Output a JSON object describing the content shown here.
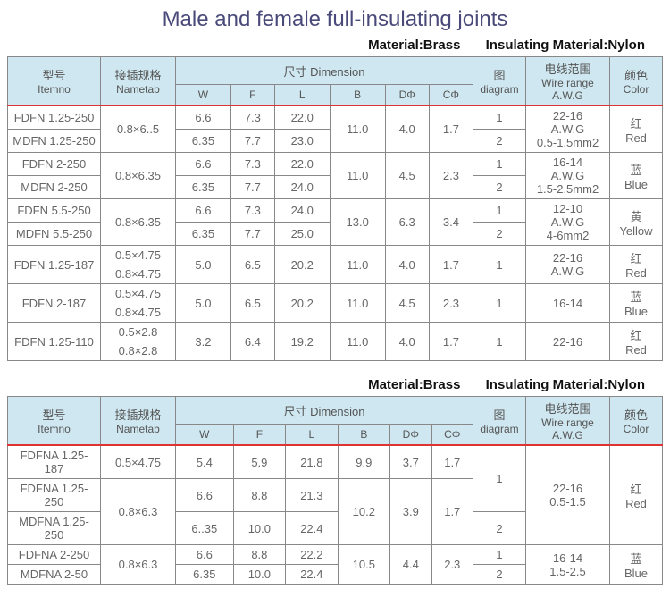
{
  "title": "Male and female full-insulating joints",
  "material_label": "Material:Brass",
  "insulating_label": "Insulating Material:Nylon",
  "headers": {
    "itemno": {
      "cn": "型号",
      "en": "Itemno"
    },
    "nametab": {
      "cn": "接插规格",
      "en": "Nametab"
    },
    "dimension": {
      "cn": "尺寸 Dimension"
    },
    "diagram": {
      "cn": "图",
      "en": "diagram"
    },
    "wirerange": {
      "cn": "电线范围",
      "en": "Wire range A.W.G"
    },
    "color": {
      "cn": "颜色",
      "en": "Color"
    },
    "W": "W",
    "F": "F",
    "L": "L",
    "B": "B",
    "DPhi": "DΦ",
    "CPhi": "CΦ"
  },
  "table1": {
    "groups": [
      {
        "itemnos": [
          "FDFN 1.25-250",
          "MDFN 1.25-250"
        ],
        "nametab": "0.8×6..5",
        "W": [
          "6.6",
          "6.35"
        ],
        "F": [
          "7.3",
          "7.7"
        ],
        "L": [
          "22.0",
          "23.0"
        ],
        "B": "11.0",
        "DPhi": "4.0",
        "CPhi": "1.7",
        "diagram": [
          "1",
          "2"
        ],
        "wirerange_lines": [
          "22-16",
          "A.W.G",
          "0.5-1.5mm2"
        ],
        "color": {
          "cn": "红",
          "en": "Red"
        }
      },
      {
        "itemnos": [
          "FDFN 2-250",
          "MDFN 2-250"
        ],
        "nametab": "0.8×6.35",
        "W": [
          "6.6",
          "6.35"
        ],
        "F": [
          "7.3",
          "7.7"
        ],
        "L": [
          "22.0",
          "24.0"
        ],
        "B": "11.0",
        "DPhi": "4.5",
        "CPhi": "2.3",
        "diagram": [
          "1",
          "2"
        ],
        "wirerange_lines": [
          "16-14",
          "A.W.G",
          "1.5-2.5mm2"
        ],
        "color": {
          "cn": "蓝",
          "en": "Blue"
        }
      },
      {
        "itemnos": [
          "FDFN 5.5-250",
          "MDFN 5.5-250"
        ],
        "nametab": "0.8×6.35",
        "W": [
          "6.6",
          "6.35"
        ],
        "F": [
          "7.3",
          "7.7"
        ],
        "L": [
          "24.0",
          "25.0"
        ],
        "B": "13.0",
        "DPhi": "6.3",
        "CPhi": "3.4",
        "diagram": [
          "1",
          "2"
        ],
        "wirerange_lines": [
          "12-10",
          "A.W.G",
          "4-6mm2"
        ],
        "color": {
          "cn": "黄",
          "en": "Yellow"
        }
      }
    ],
    "singles": [
      {
        "itemno": "FDFN 1.25-187",
        "nametab_lines": [
          "0.5×4.75",
          "0.8×4.75"
        ],
        "W": "5.0",
        "F": "6.5",
        "L": "20.2",
        "B": "11.0",
        "DPhi": "4.0",
        "CPhi": "1.7",
        "diagram": "1",
        "wirerange_lines": [
          "22-16",
          "A.W.G"
        ],
        "color": {
          "cn": "红",
          "en": "Red"
        }
      },
      {
        "itemno": "FDFN 2-187",
        "nametab_lines": [
          "0.5×4.75",
          "0.8×4.75"
        ],
        "W": "5.0",
        "F": "6.5",
        "L": "20.2",
        "B": "11.0",
        "DPhi": "4.5",
        "CPhi": "2.3",
        "diagram": "1",
        "wirerange_lines": [
          "16-14"
        ],
        "color": {
          "cn": "蓝",
          "en": "Blue"
        }
      },
      {
        "itemno": "FDFN 1.25-110",
        "nametab_lines": [
          "0.5×2.8",
          "0.8×2.8"
        ],
        "W": "3.2",
        "F": "6.4",
        "L": "19.2",
        "B": "11.0",
        "DPhi": "4.0",
        "CPhi": "1.7",
        "diagram": "1",
        "wirerange_lines": [
          "22-16"
        ],
        "color": {
          "cn": "红",
          "en": "Red"
        }
      }
    ]
  },
  "table2": {
    "row1": {
      "itemno": "FDFNA 1.25-187",
      "nametab": "0.5×4.75",
      "W": "5.4",
      "F": "5.9",
      "L": "21.8",
      "B": "9.9",
      "DPhi": "3.7",
      "CPhi": "1.7"
    },
    "groups": [
      {
        "itemnos": [
          "FDFNA 1.25-250",
          "MDFNA 1.25-250"
        ],
        "nametab": "0.8×6.3",
        "W": [
          "6.6",
          "6..35"
        ],
        "F": [
          "8.8",
          "10.0"
        ],
        "L": [
          "21.3",
          "22.4"
        ],
        "B": "10.2",
        "DPhi": "3.9",
        "CPhi": "1.7",
        "diagram": [
          "1",
          "2"
        ],
        "diagram_row1": "1",
        "wirerange_lines": [
          "22-16",
          "0.5-1.5"
        ],
        "color": {
          "cn": "红",
          "en": "Red"
        }
      },
      {
        "itemnos": [
          "FDFNA  2-250",
          "MDFNA 2-50"
        ],
        "nametab": "0.8×6.3",
        "W": [
          "6.6",
          "6.35"
        ],
        "F": [
          "8.8",
          "10.0"
        ],
        "L": [
          "22.2",
          "22.4"
        ],
        "B": "10.5",
        "DPhi": "4.4",
        "CPhi": "2.3",
        "diagram": [
          "1",
          "2"
        ],
        "wirerange_lines": [
          "16-14",
          "1.5-2.5"
        ],
        "color": {
          "cn": "蓝",
          "en": "Blue"
        }
      }
    ]
  },
  "styles": {
    "header_bg": "#cfe7f0",
    "border_color": "#888888",
    "redline_color": "#d33333",
    "title_color": "#4a4a7a"
  }
}
